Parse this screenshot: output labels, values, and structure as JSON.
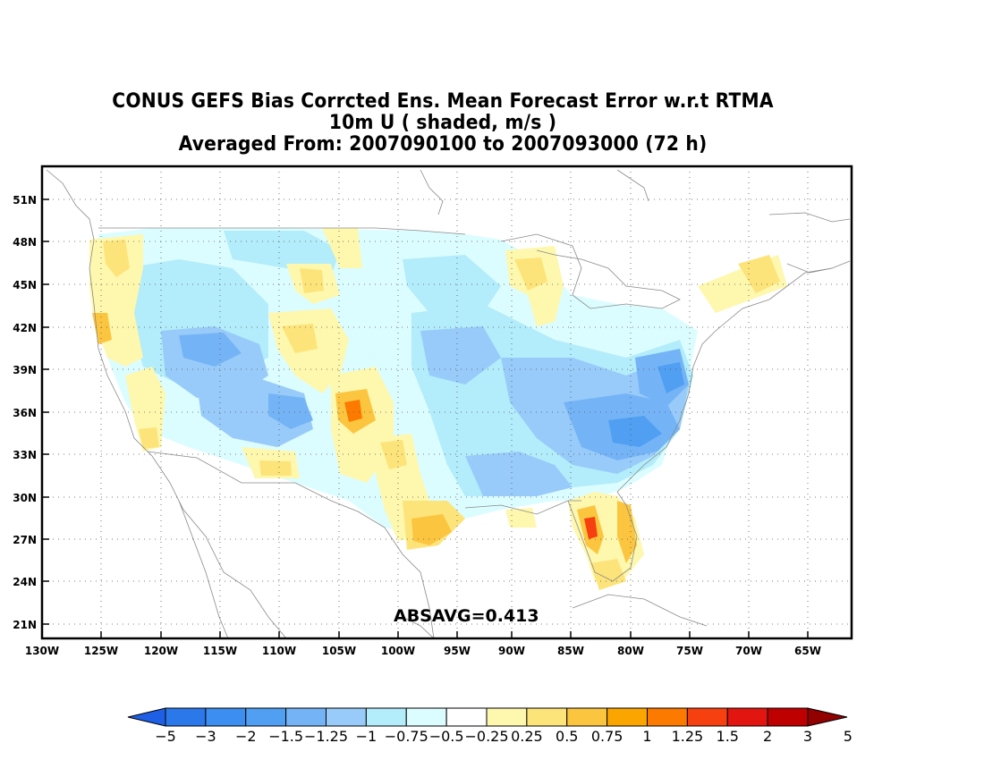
{
  "title": {
    "line1": "CONUS GEFS Bias Corrcted Ens. Mean Forecast Error w.r.t RTMA",
    "line2": "10m U ( shaded, m/s )",
    "line3": "Averaged From: 2007090100 to 2007093000 (72 h)"
  },
  "map": {
    "lat_labels": [
      "51N",
      "48N",
      "45N",
      "42N",
      "39N",
      "36N",
      "33N",
      "30N",
      "27N",
      "24N",
      "21N"
    ],
    "lon_labels": [
      "130W",
      "125W",
      "120W",
      "115W",
      "110W",
      "105W",
      "100W",
      "95W",
      "90W",
      "85W",
      "80W",
      "75W",
      "70W",
      "65W"
    ],
    "absavg_label": "ABSAVG=0.413",
    "grid": "dotted"
  },
  "colorbar": {
    "labels": [
      "−5",
      "−3",
      "−2",
      "−1.5",
      "−1.25",
      "−1",
      "−0.75",
      "−0.5",
      "−0.25",
      "0.25",
      "0.5",
      "0.75",
      "1",
      "1.25",
      "1.5",
      "2",
      "3",
      "5"
    ],
    "colors": [
      "#1e5fe6",
      "#2b78ea",
      "#3c8ef0",
      "#509ff2",
      "#74b4f6",
      "#98cbf9",
      "#b3ecfa",
      "#dcfdff",
      "#ffffff",
      "#fef7ae",
      "#fde47a",
      "#fcc53f",
      "#fba600",
      "#fc7a00",
      "#f64010",
      "#e21510",
      "#be0000",
      "#920000"
    ],
    "units": "m/s"
  }
}
